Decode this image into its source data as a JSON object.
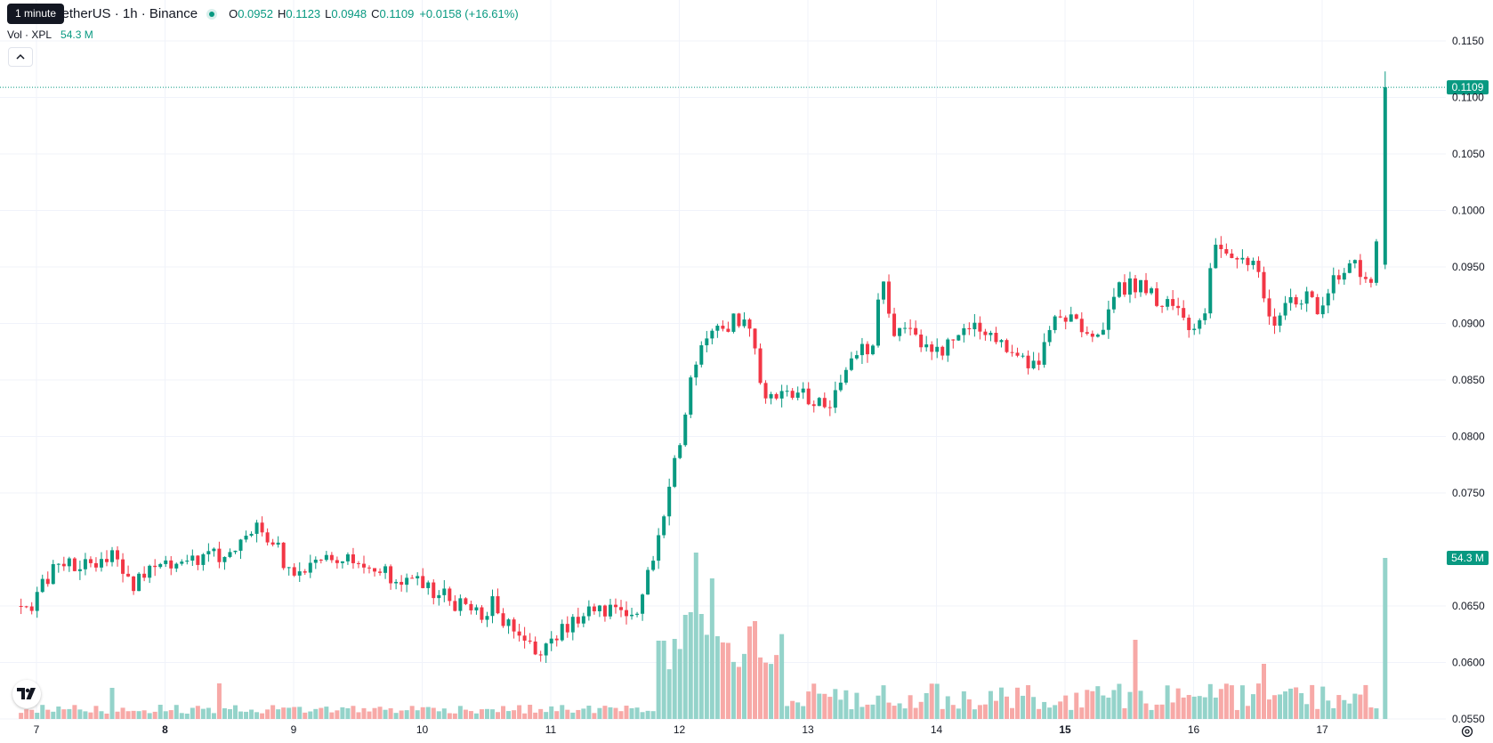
{
  "header": {
    "symbol_title": "TetherUS · 1h · Binance",
    "tooltip": "1 minute",
    "ohlc": {
      "open_key": "O",
      "open": "0.0952",
      "high_key": "H",
      "high": "0.1123",
      "low_key": "L",
      "low": "0.0948",
      "close_key": "C",
      "close": "0.1109",
      "change": "+0.0158 (+16.61%)"
    },
    "volume_label": "Vol · XPL",
    "volume_value": "54.3 M"
  },
  "icons": {
    "collapse": "chevron-up-icon",
    "logo": "tradingview-logo",
    "settings": "settings-icon"
  },
  "colors": {
    "up": "#089981",
    "down": "#f23645",
    "volume_up": "#94d3ca",
    "volume_down": "#f7a9a7",
    "grid": "#f0f3fa",
    "text": "#131722"
  },
  "chart_data": {
    "type": "candlestick",
    "interval": "1h",
    "price_axis_ticks": [
      "0.1150",
      "0.1100",
      "0.1050",
      "0.1000",
      "0.0950",
      "0.0900",
      "0.0850",
      "0.0800",
      "0.0750",
      "0.0650",
      "0.0600",
      "0.0550"
    ],
    "price_axis_range": [
      0.055,
      0.115
    ],
    "last_price_label": "0.1109",
    "last_volume_label": "54.3 M",
    "date_axis_ticks": [
      {
        "label": "7",
        "bold": false
      },
      {
        "label": "8",
        "bold": true
      },
      {
        "label": "9",
        "bold": false
      },
      {
        "label": "10",
        "bold": false
      },
      {
        "label": "11",
        "bold": false
      },
      {
        "label": "12",
        "bold": false
      },
      {
        "label": "13",
        "bold": false
      },
      {
        "label": "14",
        "bold": false
      },
      {
        "label": "15",
        "bold": true
      },
      {
        "label": "16",
        "bold": false
      },
      {
        "label": "17",
        "bold": false
      }
    ],
    "start_day": 6.88,
    "end_day": 17.49,
    "close_anchors": [
      [
        6.88,
        0.065
      ],
      [
        7.0,
        0.064
      ],
      [
        7.05,
        0.0663
      ],
      [
        7.2,
        0.069
      ],
      [
        7.55,
        0.0685
      ],
      [
        7.62,
        0.07
      ],
      [
        7.8,
        0.0668
      ],
      [
        7.95,
        0.069
      ],
      [
        8.1,
        0.0688
      ],
      [
        8.27,
        0.069
      ],
      [
        8.55,
        0.0698
      ],
      [
        8.75,
        0.0722
      ],
      [
        8.9,
        0.0705
      ],
      [
        9.0,
        0.068
      ],
      [
        9.1,
        0.0685
      ],
      [
        9.3,
        0.07
      ],
      [
        9.65,
        0.0682
      ],
      [
        9.9,
        0.0674
      ],
      [
        10.2,
        0.066
      ],
      [
        10.45,
        0.0642
      ],
      [
        10.6,
        0.0652
      ],
      [
        10.72,
        0.0631
      ],
      [
        10.95,
        0.0607
      ],
      [
        11.15,
        0.0632
      ],
      [
        11.3,
        0.0641
      ],
      [
        11.55,
        0.0647
      ],
      [
        11.75,
        0.0651
      ],
      [
        11.83,
        0.0694
      ],
      [
        11.95,
        0.075
      ],
      [
        12.05,
        0.0802
      ],
      [
        12.17,
        0.0866
      ],
      [
        12.3,
        0.089
      ],
      [
        12.45,
        0.0902
      ],
      [
        12.6,
        0.0898
      ],
      [
        12.7,
        0.0838
      ],
      [
        12.8,
        0.0835
      ],
      [
        13.0,
        0.0835
      ],
      [
        13.22,
        0.083
      ],
      [
        13.4,
        0.0868
      ],
      [
        13.55,
        0.0885
      ],
      [
        13.62,
        0.094
      ],
      [
        13.7,
        0.0888
      ],
      [
        13.85,
        0.0892
      ],
      [
        14.0,
        0.0872
      ],
      [
        14.15,
        0.088
      ],
      [
        14.35,
        0.0897
      ],
      [
        14.5,
        0.0888
      ],
      [
        14.65,
        0.087
      ],
      [
        14.75,
        0.0862
      ],
      [
        14.85,
        0.0872
      ],
      [
        14.95,
        0.0908
      ],
      [
        15.15,
        0.0898
      ],
      [
        15.3,
        0.0889
      ],
      [
        15.45,
        0.0932
      ],
      [
        15.6,
        0.0935
      ],
      [
        15.85,
        0.0914
      ],
      [
        16.0,
        0.0898
      ],
      [
        16.12,
        0.0906
      ],
      [
        16.2,
        0.0962
      ],
      [
        16.4,
        0.0963
      ],
      [
        16.55,
        0.0948
      ],
      [
        16.65,
        0.0895
      ],
      [
        16.75,
        0.0918
      ],
      [
        16.95,
        0.0922
      ],
      [
        17.0,
        0.0913
      ],
      [
        17.15,
        0.0942
      ],
      [
        17.3,
        0.095
      ],
      [
        17.42,
        0.094
      ],
      [
        17.46,
        0.0952
      ],
      [
        17.49,
        0.1109
      ]
    ],
    "volume_spikes": [
      [
        8.42,
        40
      ],
      [
        7.6,
        35
      ],
      [
        11.85,
        88
      ],
      [
        11.88,
        88
      ],
      [
        11.95,
        90
      ],
      [
        12.05,
        117
      ],
      [
        12.1,
        120
      ],
      [
        12.13,
        187
      ],
      [
        12.17,
        118
      ],
      [
        12.27,
        158
      ],
      [
        12.35,
        86
      ],
      [
        12.55,
        104
      ],
      [
        12.6,
        110
      ],
      [
        15.55,
        89
      ],
      [
        16.55,
        62
      ],
      [
        17.49,
        181
      ]
    ]
  }
}
